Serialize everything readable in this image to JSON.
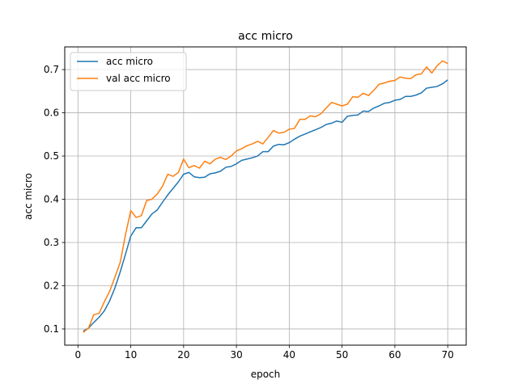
{
  "chart_data": {
    "type": "line",
    "title": "acc micro",
    "xlabel": "epoch",
    "ylabel": "acc micro",
    "xlim": [
      -2.5,
      73.5
    ],
    "ylim": [
      0.0625,
      0.7525
    ],
    "xticks": [
      0,
      10,
      20,
      30,
      40,
      50,
      60,
      70
    ],
    "yticks": [
      0.1,
      0.2,
      0.3,
      0.4,
      0.5,
      0.6,
      0.7
    ],
    "ytick_labels": [
      "0.1",
      "0.2",
      "0.3",
      "0.4",
      "0.5",
      "0.6",
      "0.7"
    ],
    "grid": true,
    "legend_position": "top-left",
    "x": [
      1,
      2,
      3,
      4,
      5,
      6,
      7,
      8,
      9,
      10,
      11,
      12,
      13,
      14,
      15,
      16,
      17,
      18,
      19,
      20,
      21,
      22,
      23,
      24,
      25,
      26,
      27,
      28,
      29,
      30,
      31,
      32,
      33,
      34,
      35,
      36,
      37,
      38,
      39,
      40,
      41,
      42,
      43,
      44,
      45,
      46,
      47,
      48,
      49,
      50,
      51,
      52,
      53,
      54,
      55,
      56,
      57,
      58,
      59,
      60,
      61,
      62,
      63,
      64,
      65,
      66,
      67,
      68,
      69,
      70
    ],
    "series": [
      {
        "name": "acc micro",
        "color": "#1f77b4",
        "values": [
          0.095,
          0.102,
          0.115,
          0.127,
          0.142,
          0.165,
          0.195,
          0.232,
          0.273,
          0.315,
          0.334,
          0.334,
          0.35,
          0.366,
          0.375,
          0.393,
          0.41,
          0.425,
          0.44,
          0.458,
          0.462,
          0.452,
          0.45,
          0.451,
          0.459,
          0.461,
          0.465,
          0.474,
          0.476,
          0.482,
          0.49,
          0.493,
          0.496,
          0.5,
          0.51,
          0.51,
          0.523,
          0.527,
          0.526,
          0.531,
          0.539,
          0.546,
          0.551,
          0.556,
          0.561,
          0.566,
          0.573,
          0.576,
          0.581,
          0.578,
          0.592,
          0.594,
          0.595,
          0.604,
          0.603,
          0.611,
          0.616,
          0.622,
          0.624,
          0.629,
          0.631,
          0.638,
          0.638,
          0.641,
          0.646,
          0.657,
          0.659,
          0.661,
          0.667,
          0.676
        ]
      },
      {
        "name": "val acc micro",
        "color": "#ff7f0e",
        "values": [
          0.092,
          0.102,
          0.133,
          0.136,
          0.163,
          0.187,
          0.22,
          0.254,
          0.318,
          0.374,
          0.358,
          0.362,
          0.397,
          0.4,
          0.412,
          0.43,
          0.458,
          0.453,
          0.462,
          0.493,
          0.473,
          0.478,
          0.472,
          0.488,
          0.482,
          0.493,
          0.497,
          0.492,
          0.5,
          0.512,
          0.517,
          0.524,
          0.528,
          0.534,
          0.528,
          0.543,
          0.559,
          0.553,
          0.555,
          0.562,
          0.564,
          0.585,
          0.585,
          0.593,
          0.591,
          0.598,
          0.611,
          0.624,
          0.62,
          0.616,
          0.62,
          0.637,
          0.636,
          0.645,
          0.64,
          0.652,
          0.666,
          0.669,
          0.673,
          0.675,
          0.683,
          0.68,
          0.679,
          0.688,
          0.69,
          0.706,
          0.692,
          0.709,
          0.72,
          0.714
        ]
      }
    ]
  }
}
